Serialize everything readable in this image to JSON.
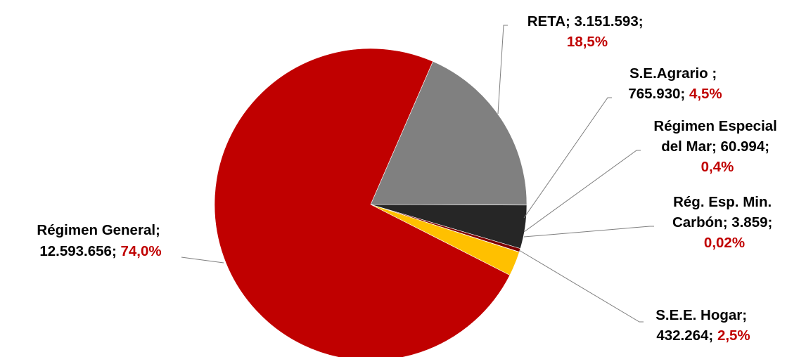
{
  "chart_data": {
    "type": "pie",
    "slices": [
      {
        "name": "RETA",
        "value": 3151593,
        "value_text": "3.151.593",
        "percent_text": "18,5%",
        "color": "#808080"
      },
      {
        "name": "S.E.Agrario ",
        "value": 765930,
        "value_text": "765.930",
        "percent_text": "4,5%",
        "color": "#262626"
      },
      {
        "name": "Régimen Especial del Mar",
        "value": 60994,
        "value_text": "60.994",
        "percent_text": "0,4%",
        "color": "#7f0000"
      },
      {
        "name": "Rég.  Esp. Min. Carbón",
        "value": 3859,
        "value_text": "3.859",
        "percent_text": "0,02%",
        "color": "#ff0000"
      },
      {
        "name": "S.E.E. Hogar",
        "value": 432264,
        "value_text": "432.264",
        "percent_text": "2,5%",
        "color": "#ffc000"
      },
      {
        "name": "Régimen General",
        "value": 12593656,
        "value_text": "12.593.656",
        "percent_text": "74,0%",
        "color": "#c00000"
      }
    ]
  },
  "labels": {
    "reta": {
      "line1": "RETA; 3.151.593;",
      "pct": "18,5%"
    },
    "agrario": {
      "line1": "S.E.Agrario ;",
      "line2_value": "765.930; ",
      "pct": "4,5%"
    },
    "mar": {
      "line1": "Régimen Especial",
      "line2": "del Mar; 60.994;",
      "pct": "0,4%"
    },
    "carbon": {
      "line1": "Rég.  Esp. Min.",
      "line2": "Carbón; 3.859;",
      "pct": "0,02%"
    },
    "hogar": {
      "line1": "S.E.E. Hogar;",
      "line2_value": "432.264; ",
      "pct": "2,5%"
    },
    "general": {
      "line1": "Régimen General;",
      "line2_value": "12.593.656; ",
      "pct": "74,0%"
    }
  }
}
